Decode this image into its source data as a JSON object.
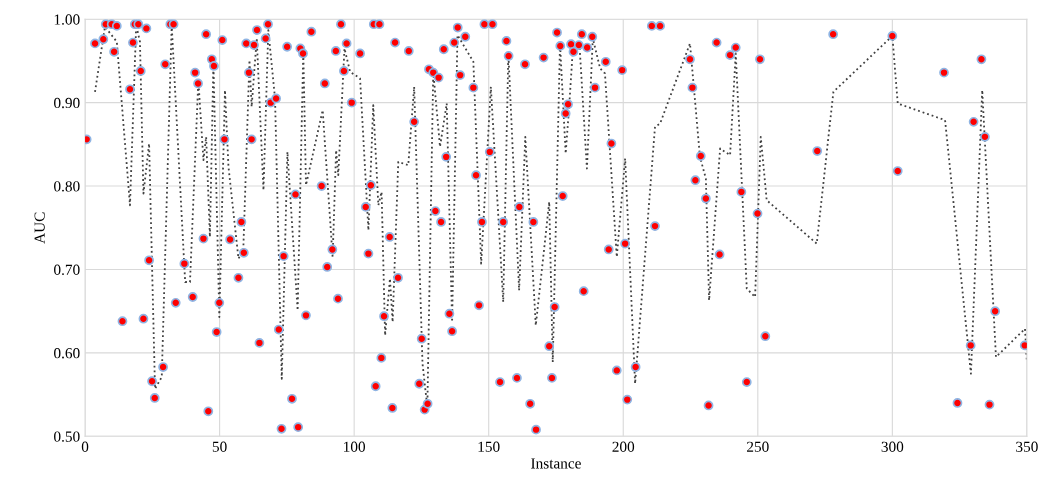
{
  "chart_data": {
    "type": "scatter",
    "xlabel": "Instance",
    "ylabel": "AUC",
    "xlim": [
      0,
      350
    ],
    "ylim": [
      0.5,
      1.0
    ],
    "xticks": [
      0,
      50,
      100,
      150,
      200,
      250,
      300,
      350
    ],
    "yticks": [
      {
        "value": 0.5,
        "label": "0.50"
      },
      {
        "value": 0.6,
        "label": "0.60"
      },
      {
        "value": 0.7,
        "label": "0.70"
      },
      {
        "value": 0.8,
        "label": "0.80"
      },
      {
        "value": 0.9,
        "label": "0.90"
      },
      {
        "value": 1.0,
        "label": "1.00"
      }
    ],
    "grid": true,
    "series": [
      {
        "color": "#ff0000",
        "marker": "circle",
        "x": [
          0.6,
          3.7,
          6.8,
          7.7,
          9.9,
          10.8,
          11.8,
          13.9,
          16.7,
          17.8,
          18.5,
          19.8,
          20.7,
          21.7,
          22.8,
          23.8,
          24.9,
          25.9,
          29.0,
          29.8,
          31.7,
          32.9,
          33.7,
          36.9,
          40.0,
          40.9,
          42.0,
          44.0,
          45.0,
          45.8,
          47.1,
          47.9,
          48.9,
          49.9,
          51.0,
          51.8,
          53.9,
          57.0,
          58.1,
          59.0,
          59.9,
          60.9,
          61.9,
          62.8,
          63.9,
          64.8,
          67.1,
          68.0,
          69.0,
          71.0,
          72.0,
          73.0,
          73.8,
          75.1,
          76.9,
          78.2,
          79.2,
          80.0,
          81.0,
          82.1,
          84.1,
          87.9,
          89.1,
          90.0,
          91.9,
          93.2,
          94.0,
          95.1,
          96.2,
          97.2,
          99.1,
          102.2,
          104.3,
          105.3,
          106.2,
          107.3,
          108.0,
          109.4,
          110.1,
          111.1,
          113.2,
          114.2,
          115.2,
          116.3,
          120.3,
          122.3,
          124.2,
          125.1,
          126.2,
          127.3,
          127.8,
          129.4,
          130.2,
          131.4,
          132.3,
          133.3,
          134.2,
          135.4,
          136.4,
          137.2,
          138.5,
          139.4,
          141.3,
          144.3,
          145.3,
          146.4,
          147.5,
          148.4,
          150.4,
          151.4,
          154.2,
          155.4,
          156.6,
          157.4,
          160.5,
          161.4,
          163.5,
          165.4,
          166.6,
          167.6,
          170.4,
          172.5,
          173.5,
          174.5,
          175.4,
          176.6,
          177.5,
          178.6,
          179.5,
          180.6,
          181.5,
          183.5,
          184.6,
          185.3,
          186.6,
          188.5,
          189.5,
          193.5,
          194.6,
          195.6,
          197.6,
          199.6,
          200.7,
          201.5,
          204.6,
          210.6,
          211.8,
          213.7,
          224.8,
          225.7,
          226.8,
          228.8,
          230.7,
          231.7,
          234.7,
          235.8,
          239.7,
          241.8,
          243.9,
          245.9,
          249.9,
          250.8,
          252.8,
          272.1,
          278.0,
          300.0,
          302.0,
          319.2,
          324.2,
          329.1,
          330.2,
          333.1,
          334.4,
          336.1,
          338.2,
          349.2
        ],
        "values": [
          0.856,
          0.971,
          0.976,
          0.994,
          0.994,
          0.961,
          0.992,
          0.638,
          0.916,
          0.972,
          0.994,
          0.994,
          0.938,
          0.641,
          0.989,
          0.711,
          0.566,
          0.546,
          0.583,
          0.946,
          0.994,
          0.994,
          0.66,
          0.707,
          0.667,
          0.936,
          0.923,
          0.737,
          0.982,
          0.53,
          0.952,
          0.944,
          0.625,
          0.66,
          0.975,
          0.856,
          0.736,
          0.69,
          0.757,
          0.72,
          0.971,
          0.936,
          0.856,
          0.969,
          0.987,
          0.612,
          0.977,
          0.994,
          0.9,
          0.905,
          0.628,
          0.509,
          0.716,
          0.967,
          0.545,
          0.79,
          0.511,
          0.965,
          0.959,
          0.645,
          0.985,
          0.8,
          0.923,
          0.703,
          0.724,
          0.962,
          0.665,
          0.994,
          0.938,
          0.971,
          0.9,
          0.959,
          0.775,
          0.719,
          0.801,
          0.994,
          0.56,
          0.994,
          0.594,
          0.644,
          0.739,
          0.534,
          0.972,
          0.69,
          0.962,
          0.877,
          0.563,
          0.617,
          0.532,
          0.539,
          0.94,
          0.936,
          0.77,
          0.93,
          0.757,
          0.964,
          0.835,
          0.647,
          0.626,
          0.972,
          0.99,
          0.933,
          0.979,
          0.918,
          0.813,
          0.657,
          0.757,
          0.994,
          0.841,
          0.994,
          0.565,
          0.757,
          0.974,
          0.956,
          0.57,
          0.775,
          0.946,
          0.539,
          0.757,
          0.508,
          0.954,
          0.608,
          0.57,
          0.655,
          0.984,
          0.968,
          0.788,
          0.887,
          0.898,
          0.97,
          0.961,
          0.969,
          0.982,
          0.674,
          0.966,
          0.979,
          0.918,
          0.949,
          0.724,
          0.851,
          0.579,
          0.939,
          0.731,
          0.544,
          0.583,
          0.992,
          0.752,
          0.992,
          0.952,
          0.918,
          0.807,
          0.836,
          0.785,
          0.537,
          0.972,
          0.718,
          0.957,
          0.966,
          0.793,
          0.565,
          0.767,
          0.952,
          0.62,
          0.842,
          0.982,
          0.98,
          0.818,
          0.936,
          0.54,
          0.609,
          0.877,
          0.952,
          0.859,
          0.538,
          0.65,
          0.609
        ]
      },
      {
        "type": "line",
        "color": "#404040",
        "line_style": "dotted",
        "marker": "none",
        "x": [
          3.7,
          7.4,
          11.8,
          16.7,
          19.0,
          20.4,
          21.7,
          23.8,
          26.0,
          28.5,
          32.2,
          37.2,
          39.0,
          42.1,
          44.0,
          45.0,
          46.4,
          47.7,
          49.9,
          52.0,
          53.3,
          57.0,
          58.8,
          61.1,
          61.9,
          63.8,
          66.3,
          68.1,
          70.6,
          73.1,
          75.2,
          79.0,
          81.1,
          82.1,
          88.3,
          92.0,
          93.3,
          94.1,
          96.4,
          98.5,
          102.2,
          105.3,
          107.1,
          109.0,
          110.2,
          111.5,
          113.3,
          114.3,
          116.4,
          120.1,
          122.3,
          125.4,
          127.2,
          129.4,
          131.9,
          134.4,
          136.4,
          138.4,
          144.3,
          147.2,
          150.8,
          155.4,
          157.3,
          161.3,
          163.6,
          167.5,
          172.5,
          173.8,
          176.5,
          178.6,
          179.9,
          181.4,
          183.7,
          186.5,
          188.7,
          191.4,
          193.2,
          197.6,
          200.7,
          204.4,
          211.8,
          213.7,
          224.8,
          228.5,
          230.7,
          231.9,
          236.0,
          239.7,
          241.8,
          245.9,
          249.0,
          251.1,
          253.3,
          271.9,
          278.1,
          300.0,
          302.0,
          319.6,
          329.2,
          333.4,
          338.5,
          349.3,
          350.0
        ],
        "values": [
          0.913,
          0.991,
          0.973,
          0.777,
          0.993,
          0.973,
          0.791,
          0.851,
          0.557,
          0.571,
          0.993,
          0.685,
          0.685,
          0.927,
          0.831,
          0.859,
          0.739,
          0.947,
          0.643,
          0.915,
          0.823,
          0.713,
          0.723,
          0.951,
          0.895,
          0.977,
          0.795,
          0.987,
          0.905,
          0.569,
          0.841,
          0.651,
          0.961,
          0.801,
          0.891,
          0.715,
          0.843,
          0.813,
          0.965,
          0.937,
          0.929,
          0.747,
          0.897,
          0.777,
          0.793,
          0.621,
          0.689,
          0.637,
          0.829,
          0.825,
          0.919,
          0.587,
          0.535,
          0.937,
          0.847,
          0.899,
          0.637,
          0.981,
          0.949,
          0.707,
          0.919,
          0.661,
          0.959,
          0.675,
          0.859,
          0.633,
          0.781,
          0.589,
          0.971,
          0.839,
          0.895,
          0.971,
          0.971,
          0.821,
          0.977,
          0.941,
          0.935,
          0.715,
          0.833,
          0.563,
          0.871,
          0.875,
          0.971,
          0.835,
          0.809,
          0.663,
          0.845,
          0.837,
          0.959,
          0.677,
          0.667,
          0.859,
          0.783,
          0.731,
          0.913,
          0.98,
          0.899,
          0.879,
          0.575,
          0.915,
          0.595,
          0.629,
          0.589
        ]
      }
    ]
  }
}
